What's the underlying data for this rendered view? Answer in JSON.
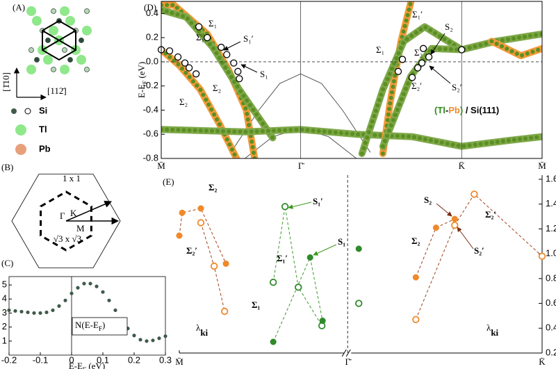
{
  "panel_a": {
    "label": "(A)",
    "direction_vertical": "[1̄10]",
    "direction_horizontal": "[112̄]",
    "legend": [
      "Si",
      "Tl",
      "Pb"
    ]
  },
  "panel_b": {
    "label": "(B)",
    "cell_1x1": "1 x 1",
    "cell_r3": "√3 x √3",
    "point_gamma": "Γ",
    "point_k": "K",
    "point_m": "M"
  },
  "chart_data": [
    {
      "type": "scatter",
      "label": "(C)",
      "xlabel": {
        "text": "E-E",
        "sub": "F",
        "tail": " (eV)"
      },
      "annotation": {
        "text": "N(E-E",
        "sub": "F",
        "tail": ")"
      },
      "color": "#3f5a4a",
      "x": [
        -0.2,
        -0.18,
        -0.16,
        -0.14,
        -0.12,
        -0.1,
        -0.08,
        -0.06,
        -0.04,
        -0.02,
        0,
        0.02,
        0.04,
        0.06,
        0.08,
        0.1,
        0.12,
        0.14,
        0.16,
        0.18,
        0.2,
        0.22,
        0.24,
        0.26,
        0.28,
        0.3
      ],
      "values": [
        3.2,
        3.15,
        3.1,
        3.05,
        3.0,
        3.0,
        3.05,
        3.2,
        3.5,
        3.9,
        4.4,
        4.8,
        5.1,
        5.1,
        4.9,
        4.5,
        3.9,
        3.2,
        2.5,
        1.9,
        1.4,
        1.1,
        1.0,
        1.05,
        1.2,
        1.35
      ],
      "xlim": [
        -0.2,
        0.3
      ],
      "xticks": [
        -0.2,
        -0.1,
        0,
        0.1,
        0.2,
        0.3
      ],
      "ylim": [
        0,
        5.6
      ],
      "yticks": [
        1,
        2,
        3,
        4,
        5
      ]
    },
    {
      "type": "line",
      "label": "(D)",
      "ylabel": {
        "text": "E-E",
        "sub": "F",
        "tail": " (eV)"
      },
      "legend_parts": [
        {
          "text": "(",
          "color": "#2f8a1a"
        },
        {
          "text": "Tl",
          "color": "#2f8a1a"
        },
        {
          "text": "-",
          "color": "#000000"
        },
        {
          "text": "Pb",
          "color": "#f0892a"
        },
        {
          "text": ")",
          "color": "#2f8a1a"
        },
        {
          "text": " / Si(111)",
          "color": "#000000"
        }
      ],
      "xlim": [
        0,
        2.732
      ],
      "xticks": [
        {
          "value": 0,
          "label": "M̄"
        },
        {
          "value": 1,
          "label": "Γ̄"
        },
        {
          "value": 2.155,
          "label": "K̄"
        },
        {
          "value": 2.732,
          "label": "M̄"
        }
      ],
      "ylim": [
        -0.8,
        0.5
      ],
      "yticks": [
        -0.8,
        -0.6,
        -0.4,
        -0.2,
        {
          "value": 0,
          "label": "0.0"
        },
        0.2,
        0.4
      ],
      "series": [
        {
          "style": "line",
          "color": "#555555",
          "x": [
            0.5,
            0.7,
            0.85,
            1,
            1.15,
            1.3,
            1.5
          ],
          "values": [
            -0.75,
            -0.4,
            -0.18,
            -0.1,
            -0.18,
            -0.4,
            -0.75
          ]
        },
        {
          "style": "line",
          "color": "#555555",
          "x": [
            0.6,
            0.8,
            1,
            1.2,
            1.4
          ],
          "values": [
            -0.8,
            -0.62,
            -0.55,
            -0.62,
            -0.8
          ]
        },
        {
          "style": "fat",
          "color": "#5b8f22",
          "edge": "#f39a3a",
          "x": [
            0,
            0.09,
            0.33,
            0.48,
            0.61,
            0.67
          ],
          "values": [
            0.47,
            0.47,
            0.23,
            -0.06,
            -0.4,
            -0.8
          ]
        },
        {
          "style": "fat",
          "color": "#5b8f22",
          "edge": "#7fa84a",
          "x": [
            0,
            0.18,
            0.37,
            0.56,
            0.8
          ],
          "values": [
            0.43,
            0.37,
            0.12,
            -0.23,
            -0.63
          ]
        },
        {
          "style": "fat",
          "color": "#5b8f22",
          "edge": "#f39a3a",
          "x": [
            0,
            0.13,
            0.28,
            0.42,
            0.54
          ],
          "values": [
            0.1,
            -0.03,
            -0.23,
            -0.52,
            -0.8
          ]
        },
        {
          "style": "fat",
          "color": "#5b8f22",
          "edge": "#7fa84a",
          "x": [
            0,
            0.3,
            0.6,
            1,
            1.4,
            1.8,
            2.155,
            2.5,
            2.732
          ],
          "values": [
            -0.56,
            -0.57,
            -0.58,
            -0.56,
            -0.6,
            -0.62,
            -0.7,
            -0.65,
            -0.62
          ]
        },
        {
          "style": "fat",
          "color": "#5b8f22",
          "edge": "#f39a3a",
          "x": [
            1.59,
            1.64,
            1.72,
            1.79
          ],
          "values": [
            -0.76,
            -0.35,
            0.17,
            0.49
          ]
        },
        {
          "style": "fat",
          "color": "#5b8f22",
          "edge": "#7fa84a",
          "x": [
            1.44,
            1.59,
            1.74,
            1.89,
            2.155,
            2.4,
            2.732
          ],
          "values": [
            -0.76,
            -0.23,
            0.17,
            0.29,
            0.1,
            0.17,
            0.23
          ]
        },
        {
          "style": "fat",
          "color": "#5b8f22",
          "edge": "#7fa84a",
          "x": [
            1.59,
            1.79,
            1.94,
            2.155
          ],
          "values": [
            -0.7,
            -0.12,
            0.11,
            0.1
          ]
        },
        {
          "style": "fat",
          "color": "#5b8f22",
          "edge": "#f39a3a",
          "x": [
            2.37,
            2.58,
            2.732
          ],
          "values": [
            0.17,
            0.05,
            0.11
          ]
        },
        {
          "style": "marker",
          "color": "#ffffff",
          "edge": "#000000",
          "x": [
            0,
            0.06,
            0.12,
            0.17,
            0.2,
            0.25,
            0.27,
            0.33,
            0.43,
            0.47,
            0.52,
            0.55,
            0.56,
            1.73,
            1.7,
            1.8,
            1.84,
            1.87,
            1.92,
            1.88,
            2.155
          ],
          "values": [
            0.1,
            0.09,
            0.04,
            -0.01,
            -0.05,
            -0.1,
            0.29,
            0.2,
            0.12,
            0.06,
            -0.01,
            -0.08,
            -0.14,
            0.02,
            -0.08,
            -0.13,
            -0.05,
            -0.01,
            0.04,
            0.11,
            0.1
          ]
        }
      ],
      "annotations": [
        "Σ₁",
        "S₁′",
        "Σ₁",
        "S₁",
        "Σ₂",
        "Σ₂",
        "Σ₁′",
        "Σ₁",
        "Σ₂",
        "S₂",
        "Σ₂′",
        "S₂′"
      ]
    },
    {
      "type": "scatter",
      "label": "(E)",
      "xlim": [
        0,
        2.155
      ],
      "xticks": [
        {
          "value": 0,
          "label": "M̄"
        },
        {
          "value": 1,
          "label": "Γ̄"
        },
        {
          "value": 2.155,
          "label": "K̄"
        }
      ],
      "ylim": [
        0.2,
        1.6
      ],
      "yticks": [
        1.6,
        1.4,
        1.2,
        {
          "value": 1,
          "label": "1.0"
        },
        0.8,
        0.6,
        0.4,
        0.2
      ],
      "series": [
        {
          "color": "#f0892a",
          "fill": "filled",
          "linecolor": "#a0401a",
          "linestyle": "dashed",
          "x": [
            0,
            0.017,
            0.128,
            0.277
          ],
          "values": [
            1.146,
            1.33,
            1.365,
            0.92
          ]
        },
        {
          "color": "#f0892a",
          "fill": "open",
          "linecolor": "#a0401a",
          "linestyle": "dashed",
          "x": [
            0.128,
            0.207,
            0.269
          ],
          "values": [
            1.25,
            0.9,
            0.536
          ]
        },
        {
          "color": "#2f8a2a",
          "fill": "open",
          "linecolor": "#3a9a2a",
          "linestyle": "dashed",
          "x": [
            0.558,
            0.628,
            0.707,
            0.847
          ],
          "values": [
            0.77,
            1.38,
            0.73,
            0.42
          ]
        },
        {
          "color": "#2f8a2a",
          "fill": "filled",
          "linecolor": "#3a9a2a",
          "linestyle": "dashed",
          "x": [
            0.558,
            0.777,
            0.851
          ],
          "values": [
            0.29,
            0.97,
            0.46
          ]
        },
        {
          "color": "#2f8a2a",
          "fill": "filled",
          "linestyle": "none",
          "x": [
            1.066
          ],
          "values": [
            1.04
          ]
        },
        {
          "color": "#2f8a2a",
          "fill": "open",
          "linestyle": "none",
          "x": [
            1.066
          ],
          "values": [
            0.6
          ]
        },
        {
          "color": "#f0892a",
          "fill": "filled",
          "linecolor": "#a0401a",
          "linestyle": "dashed",
          "x": [
            1.405,
            1.525,
            1.636
          ],
          "values": [
            0.81,
            1.21,
            1.28
          ]
        },
        {
          "color": "#f0892a",
          "fill": "open",
          "linecolor": "#a0401a",
          "linestyle": "dashed",
          "x": [
            1.405,
            1.636,
            1.752,
            2.155
          ],
          "values": [
            0.47,
            1.23,
            1.48,
            0.98
          ]
        }
      ],
      "annotations": [
        {
          "text": "Σ₂",
          "color": "#7a2a10"
        },
        {
          "text": "Σ₂′",
          "color": "#7a2a10"
        },
        {
          "text": "S₁′",
          "color": "#3a9a1a"
        },
        {
          "text": "Σ₁′",
          "color": "#3a9a1a"
        },
        {
          "text": "S₁",
          "color": "#3a9a1a"
        },
        {
          "text": "Σ₁",
          "color": "#3a9a1a"
        },
        {
          "text": "S₂",
          "color": "#7a2a10"
        },
        {
          "text": "Σ₂′",
          "color": "#7a2a10"
        },
        {
          "text": "S₂′",
          "color": "#7a2a10"
        },
        {
          "text": "Σ₂",
          "color": "#7a2a10"
        }
      ],
      "lambda_labels": [
        {
          "text": "λ",
          "sub": "ki"
        },
        {
          "text": "λ",
          "sub": "ki"
        }
      ]
    }
  ]
}
